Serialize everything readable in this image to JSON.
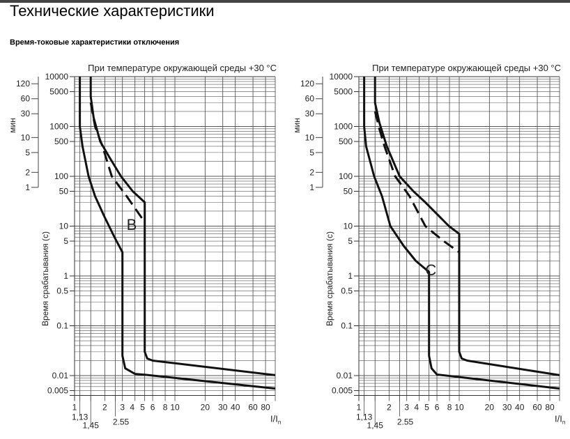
{
  "page": {
    "title": "Технические характеристики",
    "subtitle": "Время-токовые характеристики отключения"
  },
  "chart_data": [
    {
      "type": "line",
      "title": "При температуре окружающей среды +30 °C",
      "curve_label": "B",
      "ylabel": "Время срабатывания (с)",
      "ylabel_min": "мин",
      "xlabel": "I/I",
      "xlabel_sub": "n",
      "xscale": "log",
      "yscale": "log",
      "xlim": [
        1,
        100
      ],
      "ylim": [
        0.004,
        10000
      ],
      "grid": true,
      "x_ticks": [
        1,
        2,
        3,
        4,
        5,
        6,
        8,
        10,
        20,
        30,
        40,
        60,
        80
      ],
      "x_special_ticks": [
        "1,13",
        "1,45",
        "2.55"
      ],
      "x_special_values": [
        1.13,
        1.45,
        2.55
      ],
      "y_ticks": [
        "10000",
        "5000",
        "1000",
        "500",
        "100",
        "50",
        "10",
        "5",
        "1",
        "0.5",
        "0.1",
        "0.01",
        "0.005"
      ],
      "y_tick_values": [
        10000,
        5000,
        1000,
        500,
        100,
        50,
        10,
        5,
        1,
        0.5,
        0.1,
        0.01,
        0.005
      ],
      "min_ticks": [
        "120",
        "60",
        "30",
        "10",
        "5",
        "2",
        "1"
      ],
      "min_tick_values": [
        120,
        60,
        30,
        10,
        5,
        2,
        1
      ],
      "series": [
        {
          "style": "solid",
          "points": [
            [
              1.13,
              10000
            ],
            [
              1.13,
              1000
            ],
            [
              1.2,
              400
            ],
            [
              1.38,
              100
            ],
            [
              1.6,
              40
            ],
            [
              2,
              15
            ],
            [
              2.5,
              6
            ],
            [
              3,
              3
            ],
            [
              3,
              0.025
            ],
            [
              3.2,
              0.014
            ],
            [
              4,
              0.0108
            ],
            [
              5,
              0.0104
            ],
            [
              100,
              0.0055
            ]
          ]
        },
        {
          "style": "solid",
          "points": [
            [
              1.45,
              10000
            ],
            [
              1.45,
              4000
            ],
            [
              1.55,
              1500
            ],
            [
              1.8,
              500
            ],
            [
              2.2,
              250
            ],
            [
              2.9,
              100
            ],
            [
              3.8,
              50
            ],
            [
              5,
              30
            ],
            [
              5,
              0.03
            ],
            [
              5.3,
              0.022
            ],
            [
              6,
              0.02
            ],
            [
              100,
              0.0102
            ]
          ]
        },
        {
          "style": "dashed",
          "points": [
            [
              1.45,
              3000
            ],
            [
              1.6,
              1000
            ],
            [
              1.9,
              400
            ],
            [
              2.35,
              100
            ],
            [
              3.3,
              40
            ],
            [
              5,
              12
            ]
          ]
        }
      ]
    },
    {
      "type": "line",
      "title": "При температуре окружающей среды +30 °C",
      "curve_label": "C",
      "ylabel": "Время срабатывания (с)",
      "ylabel_min": "мин",
      "xlabel": "I/I",
      "xlabel_sub": "n",
      "xscale": "log",
      "yscale": "log",
      "xlim": [
        1,
        100
      ],
      "ylim": [
        0.004,
        10000
      ],
      "grid": true,
      "x_ticks": [
        1,
        2,
        3,
        4,
        5,
        6,
        8,
        10,
        20,
        30,
        40,
        60,
        80
      ],
      "x_special_ticks": [
        "1,13",
        "1,45",
        "2.55"
      ],
      "x_special_values": [
        1.13,
        1.45,
        2.55
      ],
      "y_ticks": [
        "10000",
        "5000",
        "1000",
        "500",
        "100",
        "50",
        "10",
        "5",
        "1",
        "0.5",
        "0.1",
        "0.01",
        "0.005"
      ],
      "y_tick_values": [
        10000,
        5000,
        1000,
        500,
        100,
        50,
        10,
        5,
        1,
        0.5,
        0.1,
        0.01,
        0.005
      ],
      "min_ticks": [
        "120",
        "60",
        "30",
        "10",
        "5",
        "2",
        "1"
      ],
      "min_tick_values": [
        120,
        60,
        30,
        10,
        5,
        2,
        1
      ],
      "series": [
        {
          "style": "solid",
          "points": [
            [
              1.13,
              10000
            ],
            [
              1.13,
              1000
            ],
            [
              1.18,
              400
            ],
            [
              1.42,
              100
            ],
            [
              1.7,
              40
            ],
            [
              2.06,
              10
            ],
            [
              2.8,
              4
            ],
            [
              3.7,
              2
            ],
            [
              5,
              1.2
            ],
            [
              5,
              0.025
            ],
            [
              5.3,
              0.014
            ],
            [
              6,
              0.0105
            ],
            [
              100,
              0.0055
            ]
          ]
        },
        {
          "style": "solid",
          "points": [
            [
              1.45,
              10000
            ],
            [
              1.45,
              3000
            ],
            [
              1.6,
              1200
            ],
            [
              1.9,
              400
            ],
            [
              2.55,
              100
            ],
            [
              3.5,
              50
            ],
            [
              4.6,
              30
            ],
            [
              7.9,
              10
            ],
            [
              10,
              7
            ],
            [
              10,
              0.03
            ],
            [
              10.6,
              0.022
            ],
            [
              12,
              0.02
            ],
            [
              100,
              0.0102
            ]
          ]
        },
        {
          "style": "dashed",
          "points": [
            [
              1.45,
              2000
            ],
            [
              1.6,
              900
            ],
            [
              1.8,
              400
            ],
            [
              2.3,
              100
            ],
            [
              3.2,
              40
            ],
            [
              4.6,
              10
            ],
            [
              7,
              5
            ],
            [
              10,
              3
            ]
          ]
        }
      ]
    }
  ]
}
